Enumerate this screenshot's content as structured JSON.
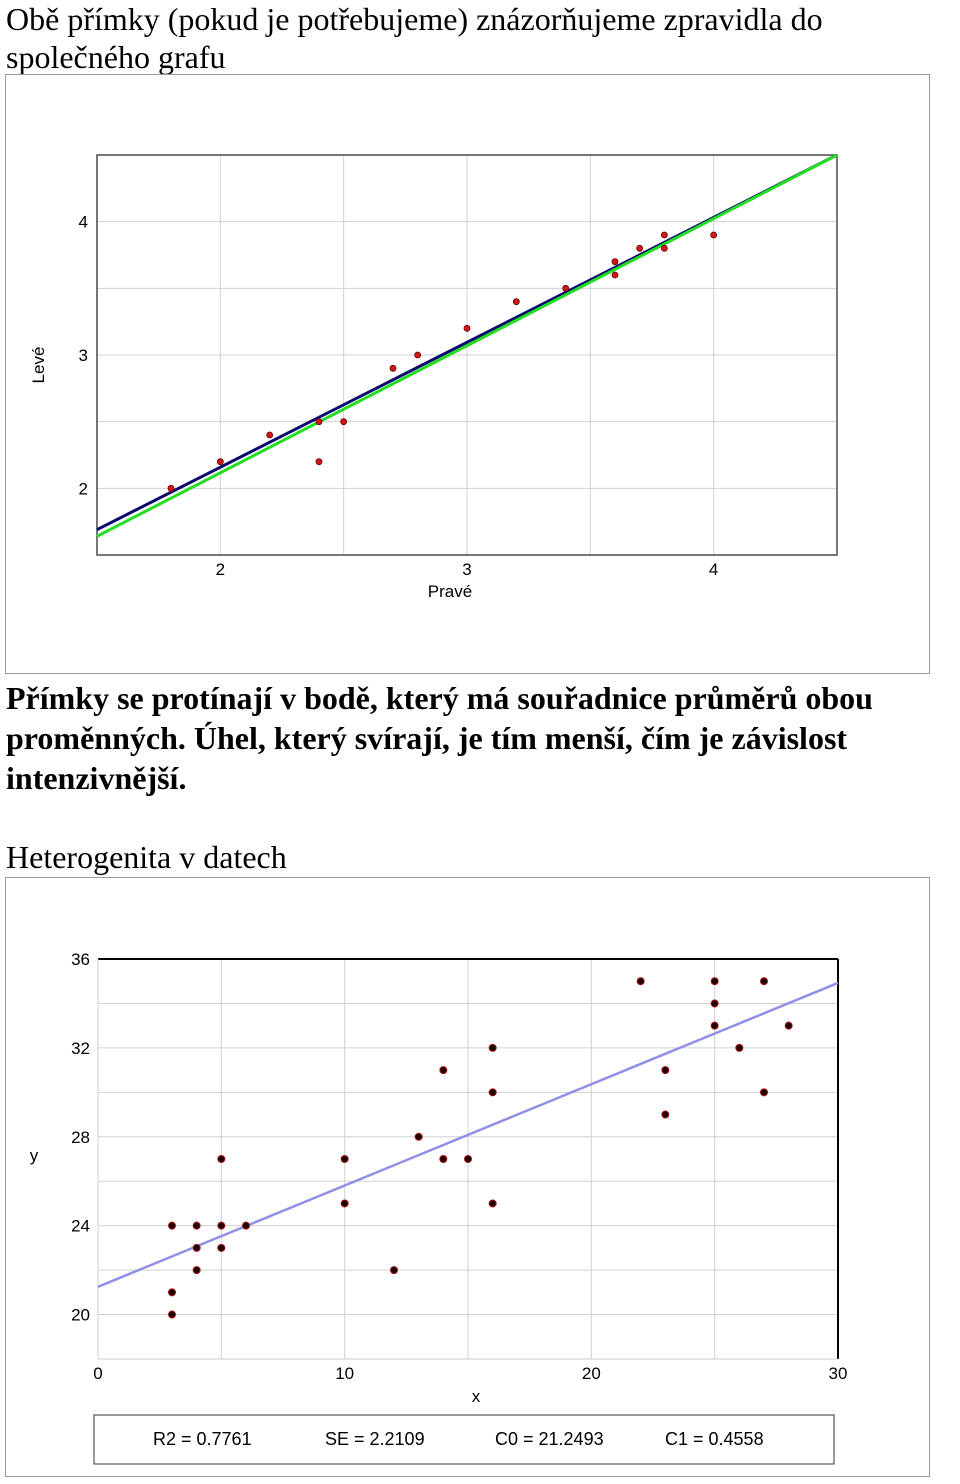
{
  "heading1": "Obě přímky (pokud je potřebujeme) znázorňujeme zpravidla do společného grafu",
  "paragraph": "Přímky se protínají v bodě, který má souřadnice průměrů obou proměnných. Úhel, který svírají, je tím menší, čím je závislost intenzivnější.",
  "heading2": "Heterogenita v datech",
  "colors": {
    "point": "#d01818",
    "line_blue": "#0a0a6e",
    "line_green": "#22dd22",
    "line_lilac": "#9090e6",
    "grid": "#d0d0d0"
  },
  "chart_data": [
    {
      "type": "scatter",
      "xlabel": "Pravé",
      "ylabel": "Levé",
      "xlim": [
        1.5,
        4.5
      ],
      "ylim": [
        1.5,
        4.5
      ],
      "x_ticks": [
        "2",
        "3",
        "4"
      ],
      "y_ticks": [
        "2",
        "3",
        "4"
      ],
      "points": [
        [
          1.8,
          2.0
        ],
        [
          2.0,
          2.2
        ],
        [
          2.2,
          2.4
        ],
        [
          2.4,
          2.5
        ],
        [
          2.4,
          2.2
        ],
        [
          2.5,
          2.5
        ],
        [
          2.7,
          2.9
        ],
        [
          2.8,
          3.0
        ],
        [
          3.0,
          3.2
        ],
        [
          3.2,
          3.4
        ],
        [
          3.4,
          3.5
        ],
        [
          3.6,
          3.7
        ],
        [
          3.6,
          3.6
        ],
        [
          3.7,
          3.8
        ],
        [
          3.8,
          3.9
        ],
        [
          3.8,
          3.8
        ],
        [
          4.0,
          3.9
        ]
      ],
      "lines": [
        {
          "color": "blue",
          "from": [
            1.5,
            1.69
          ],
          "to": [
            4.5,
            4.5
          ]
        },
        {
          "color": "green",
          "from": [
            1.5,
            1.64
          ],
          "to": [
            4.5,
            4.5
          ]
        }
      ],
      "grid": true
    },
    {
      "type": "scatter",
      "xlabel": "x",
      "ylabel": "y",
      "xlim": [
        0,
        30
      ],
      "ylim": [
        18,
        36
      ],
      "x_ticks": [
        "0",
        "10",
        "20",
        "30"
      ],
      "y_ticks": [
        "20",
        "24",
        "28",
        "32",
        "36"
      ],
      "points": [
        [
          3,
          24
        ],
        [
          3,
          21
        ],
        [
          3,
          20
        ],
        [
          4,
          24
        ],
        [
          4,
          23
        ],
        [
          4,
          22
        ],
        [
          5,
          27
        ],
        [
          5,
          24
        ],
        [
          5,
          23
        ],
        [
          6,
          24
        ],
        [
          10,
          27
        ],
        [
          10,
          25
        ],
        [
          12,
          22
        ],
        [
          13,
          28
        ],
        [
          14,
          31
        ],
        [
          14,
          27
        ],
        [
          15,
          27
        ],
        [
          16,
          32
        ],
        [
          16,
          30
        ],
        [
          16,
          25
        ],
        [
          22,
          35
        ],
        [
          23,
          31
        ],
        [
          23,
          29
        ],
        [
          25,
          35
        ],
        [
          25,
          34
        ],
        [
          25,
          33
        ],
        [
          26,
          32
        ],
        [
          27,
          35
        ],
        [
          27,
          30
        ],
        [
          28,
          33
        ]
      ],
      "lines": [
        {
          "color": "lilac",
          "from": [
            0,
            21.2493
          ],
          "to": [
            30,
            34.9233
          ]
        }
      ],
      "grid": true,
      "stats": [
        "R2 = 0.7761",
        "SE = 2.2109",
        "C0 = 21.2493",
        "C1 = 0.4558"
      ]
    }
  ]
}
